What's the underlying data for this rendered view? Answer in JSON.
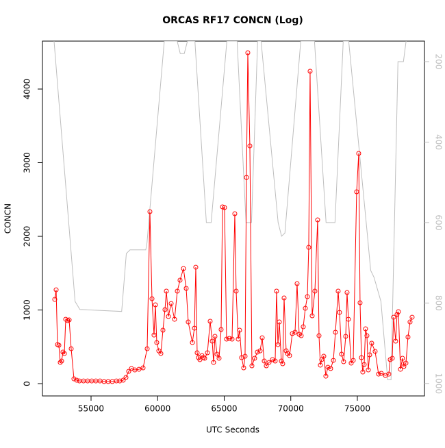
{
  "chart_data": {
    "type": "line",
    "title": "ORCAS RF17 CONCN (Log)",
    "xlabel": "UTC Seconds",
    "ylabel": "CONCN",
    "xlim": [
      51350,
      80040
    ],
    "xticks": [
      55000,
      60000,
      65000,
      70000,
      75000
    ],
    "ylim": [
      -167,
      4651
    ],
    "yticks": [
      0,
      1000,
      2000,
      3000,
      4000
    ],
    "y2lim": [
      1031,
      149
    ],
    "y2ticks": [
      200,
      400,
      600,
      800,
      1000
    ],
    "y2color": "#bebebe",
    "series": [
      {
        "color": "#ff0000",
        "marker": "circle",
        "x": [
          52275,
          52378,
          52481,
          52584,
          52687,
          52789,
          52892,
          52995,
          53098,
          53252,
          53355,
          53509,
          53715,
          53921,
          54126,
          54435,
          54743,
          55052,
          55360,
          55668,
          55977,
          56285,
          56594,
          56902,
          57159,
          57416,
          57622,
          57828,
          58033,
          58290,
          58599,
          58907,
          59216,
          59421,
          59576,
          59730,
          59833,
          59935,
          60090,
          60244,
          60398,
          60552,
          60655,
          60809,
          61015,
          61272,
          61478,
          61683,
          61940,
          62146,
          62300,
          62609,
          62763,
          62866,
          62969,
          63071,
          63174,
          63329,
          63431,
          63534,
          63740,
          63945,
          64100,
          64203,
          64305,
          64460,
          64614,
          64768,
          64871,
          65025,
          65179,
          65385,
          65591,
          65796,
          65899,
          66053,
          66156,
          66310,
          66465,
          66567,
          66670,
          66773,
          66927,
          67081,
          67287,
          67493,
          67698,
          67853,
          68007,
          68161,
          68367,
          68624,
          68829,
          68932,
          69035,
          69138,
          69292,
          69395,
          69498,
          69652,
          69755,
          69909,
          70115,
          70320,
          70474,
          70629,
          70783,
          70937,
          71091,
          71246,
          71348,
          71451,
          71606,
          71811,
          72017,
          72120,
          72222,
          72325,
          72480,
          72634,
          72788,
          72994,
          73199,
          73353,
          73559,
          73662,
          73816,
          73970,
          74125,
          74227,
          74330,
          74536,
          74690,
          74947,
          75101,
          75204,
          75307,
          75410,
          75513,
          75615,
          75718,
          75821,
          75924,
          76078,
          76335,
          76592,
          76798,
          77106,
          77363,
          77466,
          77621,
          77723,
          77878,
          77980,
          78083,
          78237,
          78392,
          78494,
          78649,
          78803,
          78957,
          79111
        ],
        "values": [
          1144,
          1274,
          530,
          521,
          288,
          307,
          428,
          409,
          874,
          856,
          865,
          474,
          65,
          47,
          37,
          37,
          37,
          37,
          37,
          37,
          28,
          28,
          28,
          37,
          37,
          47,
          84,
          167,
          205,
          186,
          195,
          214,
          474,
          2335,
          1153,
          660,
          1070,
          558,
          446,
          409,
          726,
          1005,
          1256,
          912,
          1088,
          874,
          1256,
          1405,
          1563,
          1293,
          837,
          558,
          753,
          1581,
          419,
          353,
          326,
          381,
          353,
          344,
          419,
          847,
          577,
          288,
          642,
          400,
          344,
          735,
          2400,
          2391,
          605,
          614,
          605,
          2307,
          1256,
          605,
          726,
          353,
          214,
          372,
          2800,
          4493,
          3228,
          242,
          344,
          428,
          446,
          623,
          307,
          242,
          288,
          326,
          307,
          1256,
          530,
          837,
          307,
          270,
          1163,
          446,
          409,
          381,
          679,
          698,
          1358,
          670,
          651,
          772,
          1023,
          1181,
          1851,
          4242,
          921,
          1256,
          2223,
          651,
          251,
          326,
          372,
          102,
          223,
          205,
          316,
          698,
          1256,
          967,
          400,
          298,
          642,
          1237,
          874,
          279,
          316,
          2605,
          3126,
          1098,
          353,
          158,
          260,
          744,
          651,
          186,
          391,
          549,
          437,
          130,
          140,
          112,
          130,
          326,
          344,
          902,
          577,
          940,
          977,
          195,
          344,
          233,
          279,
          633,
          837,
          902
        ]
      },
      {
        "color": "#bebebe",
        "axis": "y2",
        "x": [
          52200,
          53800,
          54160,
          57300,
          57650,
          57930,
          59110,
          59200,
          60500,
          61470,
          61700,
          62000,
          62240,
          62800,
          63660,
          64020,
          65200,
          65970,
          66640,
          67050,
          67510,
          67770,
          69050,
          69310,
          69560,
          70750,
          71780,
          72650,
          73320,
          73940,
          74350,
          75740,
          76000,
          76250,
          76770,
          77280,
          77530,
          78050,
          78460,
          78660,
          78700
        ],
        "values": [
          140,
          796,
          816,
          821,
          677,
          668,
          668,
          651,
          149,
          149,
          180,
          180,
          149,
          149,
          600,
          600,
          149,
          149,
          600,
          600,
          149,
          149,
          600,
          634,
          626,
          149,
          149,
          600,
          600,
          149,
          149,
          626,
          719,
          736,
          796,
          991,
          991,
          200,
          200,
          149,
          140
        ]
      }
    ]
  }
}
